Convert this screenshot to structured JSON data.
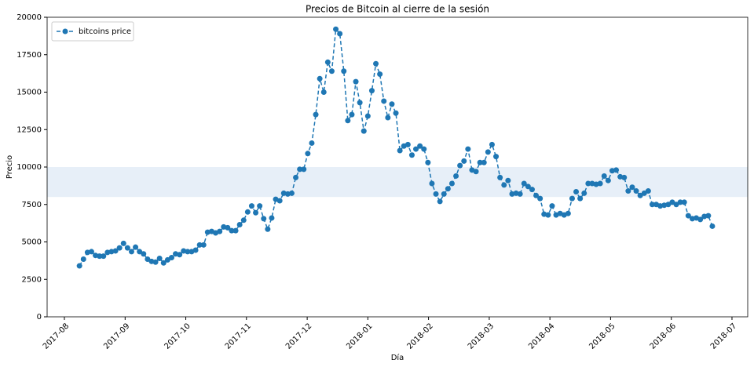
{
  "chart_data": {
    "type": "line",
    "title": "Precios de Bitcoin al cierre de la sesión",
    "xlabel": "Día",
    "ylabel": "Precio",
    "x": [
      2017.604,
      2017.6095,
      2017.615,
      2017.6205,
      2017.626,
      2017.6315,
      2017.637,
      2017.6425,
      2017.648,
      2017.6535,
      2017.659,
      2017.6645,
      2017.67,
      2017.6755,
      2017.681,
      2017.6865,
      2017.692,
      2017.6975,
      2017.703,
      2017.7085,
      2017.714,
      2017.7195,
      2017.725,
      2017.7305,
      2017.736,
      2017.7415,
      2017.747,
      2017.7525,
      2017.758,
      2017.7635,
      2017.769,
      2017.7745,
      2017.78,
      2017.7855,
      2017.791,
      2017.7965,
      2017.802,
      2017.8075,
      2017.813,
      2017.8185,
      2017.824,
      2017.8295,
      2017.835,
      2017.8405,
      2017.846,
      2017.8515,
      2017.857,
      2017.8625,
      2017.868,
      2017.8735,
      2017.879,
      2017.8845,
      2017.89,
      2017.8955,
      2017.901,
      2017.9065,
      2017.912,
      2017.9175,
      2017.923,
      2017.9285,
      2017.934,
      2017.9395,
      2017.945,
      2017.9505,
      2017.956,
      2017.9615,
      2017.967,
      2017.9725,
      2017.978,
      2017.9835,
      2017.989,
      2017.9945,
      2018.0,
      2018.0055,
      2018.011,
      2018.0165,
      2018.022,
      2018.0275,
      2018.033,
      2018.0385,
      2018.044,
      2018.0495,
      2018.055,
      2018.0605,
      2018.066,
      2018.0715,
      2018.077,
      2018.0825,
      2018.088,
      2018.0935,
      2018.099,
      2018.1045,
      2018.11,
      2018.1155,
      2018.121,
      2018.1265,
      2018.132,
      2018.1375,
      2018.143,
      2018.1485,
      2018.154,
      2018.1595,
      2018.165,
      2018.1705,
      2018.176,
      2018.1815,
      2018.187,
      2018.1925,
      2018.198,
      2018.2035,
      2018.209,
      2018.2145,
      2018.22,
      2018.2255,
      2018.231,
      2018.2365,
      2018.242,
      2018.2475,
      2018.253,
      2018.2585,
      2018.264,
      2018.2695,
      2018.275,
      2018.2805,
      2018.286,
      2018.2915,
      2018.297,
      2018.3025,
      2018.308,
      2018.3135,
      2018.319,
      2018.3245,
      2018.33,
      2018.3355,
      2018.341,
      2018.3465,
      2018.352,
      2018.3575,
      2018.363,
      2018.3685,
      2018.374,
      2018.3795,
      2018.385,
      2018.3905,
      2018.396,
      2018.4015,
      2018.407,
      2018.4125,
      2018.418,
      2018.4235,
      2018.429,
      2018.4345,
      2018.44,
      2018.4455,
      2018.451,
      2018.4565,
      2018.462,
      2018.4675,
      2018.473
    ],
    "series": [
      {
        "name": "bitcoins price",
        "color": "#1f77b4",
        "values": [
          3400,
          3850,
          4300,
          4350,
          4100,
          4050,
          4050,
          4300,
          4350,
          4400,
          4600,
          4900,
          4600,
          4350,
          4650,
          4350,
          4200,
          3850,
          3700,
          3650,
          3900,
          3600,
          3800,
          3950,
          4200,
          4150,
          4400,
          4350,
          4350,
          4450,
          4800,
          4800,
          5650,
          5700,
          5600,
          5700,
          6000,
          5950,
          5750,
          5750,
          6150,
          6450,
          7000,
          7400,
          6950,
          7400,
          6550,
          5850,
          6600,
          7850,
          7750,
          8250,
          8200,
          8250,
          9300,
          9850,
          9850,
          10900,
          11600,
          13500,
          15900,
          15000,
          17000,
          16400,
          19200,
          18900,
          16400,
          13100,
          13500,
          15700,
          14300,
          12400,
          13400,
          15100,
          16900,
          16200,
          14400,
          13300,
          14200,
          13600,
          11100,
          11400,
          11500,
          10800,
          11200,
          11400,
          11200,
          10300,
          8900,
          8200,
          7700,
          8200,
          8550,
          8900,
          9400,
          10100,
          10400,
          11200,
          9800,
          9700,
          10300,
          10300,
          11000,
          11500,
          10700,
          9300,
          8800,
          9100,
          8200,
          8250,
          8200,
          8900,
          8700,
          8500,
          8100,
          7900,
          6850,
          6800,
          7400,
          6800,
          6900,
          6800,
          6900,
          7900,
          8350,
          7900,
          8250,
          8900,
          8900,
          8850,
          8900,
          9400,
          9100,
          9750,
          9800,
          9350,
          9300,
          8400,
          8650,
          8400,
          8100,
          8250,
          8400,
          7500,
          7500,
          7400,
          7450,
          7500,
          7650,
          7500,
          7650,
          7650,
          6750,
          6550,
          6600,
          6500,
          6700,
          6750,
          6050
        ]
      }
    ],
    "hspan": [
      8000,
      10000
    ],
    "hspan_color": "#e7eff8",
    "xlim": [
      2017.5596,
      2018.5216
    ],
    "xticks": [
      {
        "value": 2017.5833,
        "label": "2017-08"
      },
      {
        "value": 2017.6667,
        "label": "2017-09"
      },
      {
        "value": 2017.75,
        "label": "2017-10"
      },
      {
        "value": 2017.8333,
        "label": "2017-11"
      },
      {
        "value": 2017.9167,
        "label": "2017-12"
      },
      {
        "value": 2018.0,
        "label": "2018-01"
      },
      {
        "value": 2018.0833,
        "label": "2018-02"
      },
      {
        "value": 2018.1667,
        "label": "2018-03"
      },
      {
        "value": 2018.25,
        "label": "2018-04"
      },
      {
        "value": 2018.3333,
        "label": "2018-05"
      },
      {
        "value": 2018.4167,
        "label": "2018-06"
      },
      {
        "value": 2018.5,
        "label": "2018-07"
      }
    ],
    "ylim": [
      0,
      20000
    ],
    "yticks": [
      0,
      2500,
      5000,
      7500,
      10000,
      12500,
      15000,
      17500,
      20000
    ],
    "legend": "upper left"
  }
}
